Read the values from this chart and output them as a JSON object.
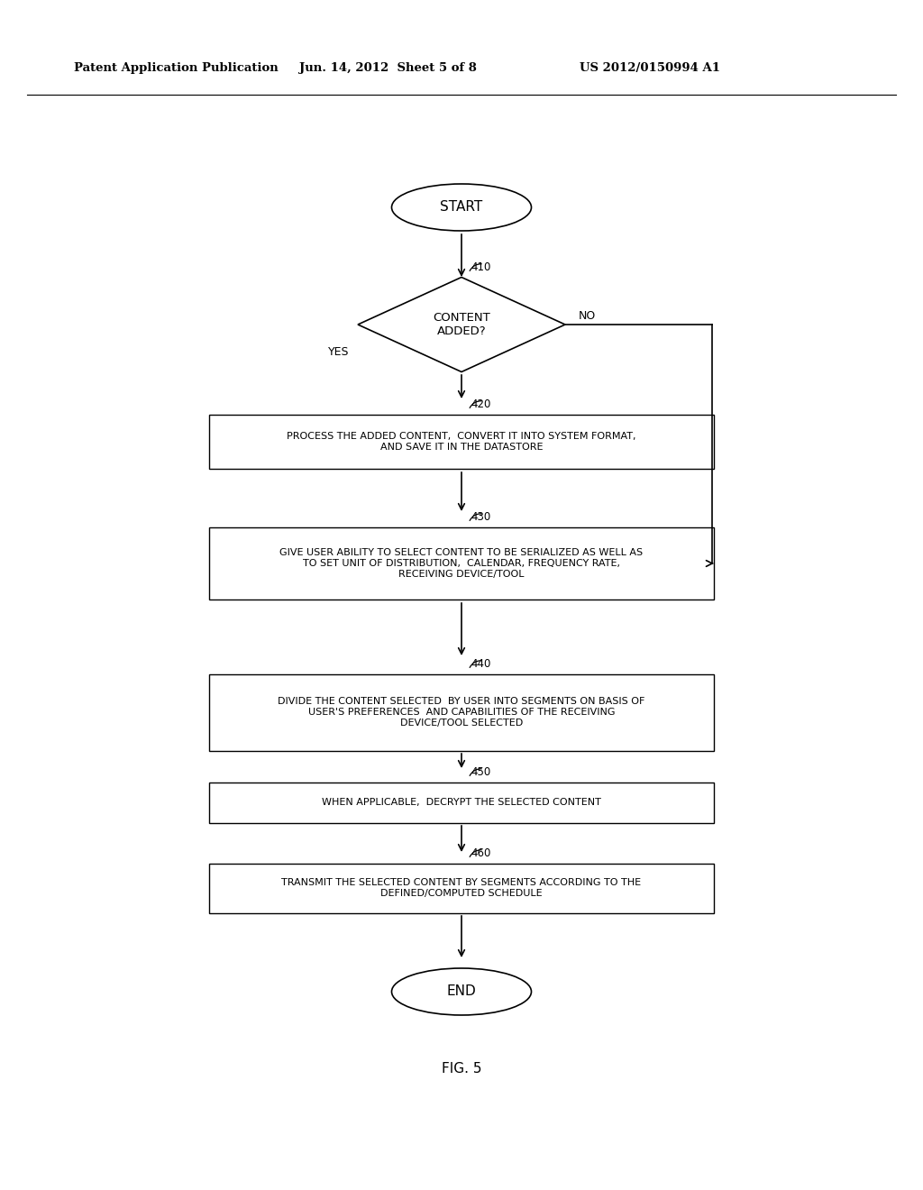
{
  "bg_color": "#ffffff",
  "header_left": "Patent Application Publication",
  "header_center": "Jun. 14, 2012  Sheet 5 of 8",
  "header_right": "US 2012/0150994 A1",
  "fig_label": "FIG. 5",
  "start_label": "START",
  "end_label": "END",
  "diamond_label": "CONTENT\nADDED?",
  "box420_text": "PROCESS THE ADDED CONTENT,  CONVERT IT INTO SYSTEM FORMAT,\nAND SAVE IT IN THE DATASTORE",
  "box430_text": "GIVE USER ABILITY TO SELECT CONTENT TO BE SERIALIZED AS WELL AS\nTO SET UNIT OF DISTRIBUTION,  CALENDAR, FREQUENCY RATE,\nRECEIVING DEVICE/TOOL",
  "box440_text": "DIVIDE THE CONTENT SELECTED  BY USER INTO SEGMENTS ON BASIS OF\nUSER'S PREFERENCES  AND CAPABILITIES OF THE RECEIVING\nDEVICE/TOOL SELECTED",
  "box450_text": "WHEN APPLICABLE,  DECRYPT THE SELECTED CONTENT",
  "box460_text": "TRANSMIT THE SELECTED CONTENT BY SEGMENTS ACCORDING TO THE\nDEFINED/COMPUTED SCHEDULE",
  "label_410": "410",
  "label_420": "420",
  "label_430": "430",
  "label_440": "440",
  "label_450": "450",
  "label_460": "460",
  "yes_text": "YES",
  "no_text": "NO",
  "text_color": "#000000",
  "line_color": "#000000"
}
